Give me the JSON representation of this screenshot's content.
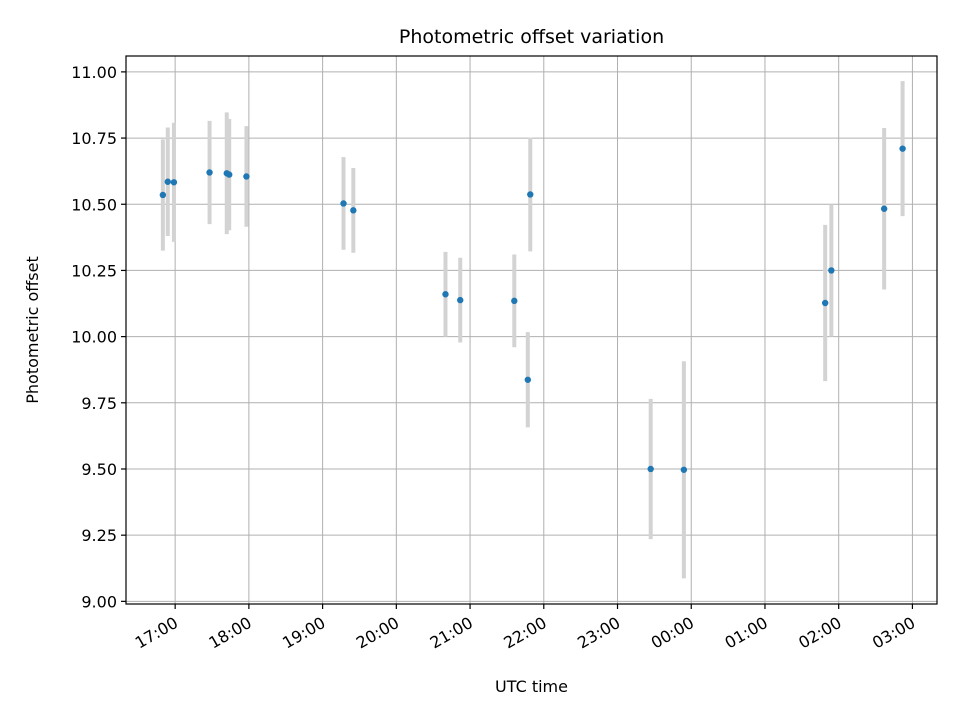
{
  "chart_data": {
    "type": "scatter",
    "title": "Photometric offset variation",
    "xlabel": "UTC time",
    "ylabel": "Photometric offset",
    "x_axis_type": "time",
    "xlim": [
      "16:20",
      "03:20"
    ],
    "ylim": [
      8.99,
      11.06
    ],
    "grid": true,
    "x_ticks": [
      "17:00",
      "18:00",
      "19:00",
      "20:00",
      "21:00",
      "22:00",
      "23:00",
      "00:00",
      "01:00",
      "02:00",
      "03:00"
    ],
    "y_ticks": [
      "9.00",
      "9.25",
      "9.50",
      "9.75",
      "10.00",
      "10.25",
      "10.50",
      "10.75",
      "11.00"
    ],
    "colors": {
      "marker": "#1f77b4",
      "errorbar": "#d3d3d3",
      "grid": "#b0b0b0"
    },
    "series": [
      {
        "points": [
          {
            "x": "16:50",
            "y": 10.535,
            "err": 0.21
          },
          {
            "x": "16:54",
            "y": 10.585,
            "err": 0.205
          },
          {
            "x": "16:59",
            "y": 10.583,
            "err": 0.225
          },
          {
            "x": "17:28",
            "y": 10.62,
            "err": 0.195
          },
          {
            "x": "17:42",
            "y": 10.617,
            "err": 0.23
          },
          {
            "x": "17:44",
            "y": 10.612,
            "err": 0.21
          },
          {
            "x": "17:58",
            "y": 10.605,
            "err": 0.19
          },
          {
            "x": "19:17",
            "y": 10.503,
            "err": 0.175
          },
          {
            "x": "19:25",
            "y": 10.477,
            "err": 0.16
          },
          {
            "x": "20:40",
            "y": 10.16,
            "err": 0.16
          },
          {
            "x": "20:52",
            "y": 10.138,
            "err": 0.16
          },
          {
            "x": "21:36",
            "y": 10.135,
            "err": 0.175
          },
          {
            "x": "21:47",
            "y": 9.837,
            "err": 0.18
          },
          {
            "x": "21:49",
            "y": 10.537,
            "err": 0.215
          },
          {
            "x": "23:27",
            "y": 9.5,
            "err": 0.265
          },
          {
            "x": "23:54",
            "y": 9.497,
            "err": 0.41
          },
          {
            "x": "01:49",
            "y": 10.127,
            "err": 0.295
          },
          {
            "x": "01:54",
            "y": 10.25,
            "err": 0.25
          },
          {
            "x": "02:37",
            "y": 10.483,
            "err": 0.305
          },
          {
            "x": "02:52",
            "y": 10.71,
            "err": 0.255
          }
        ]
      }
    ]
  }
}
